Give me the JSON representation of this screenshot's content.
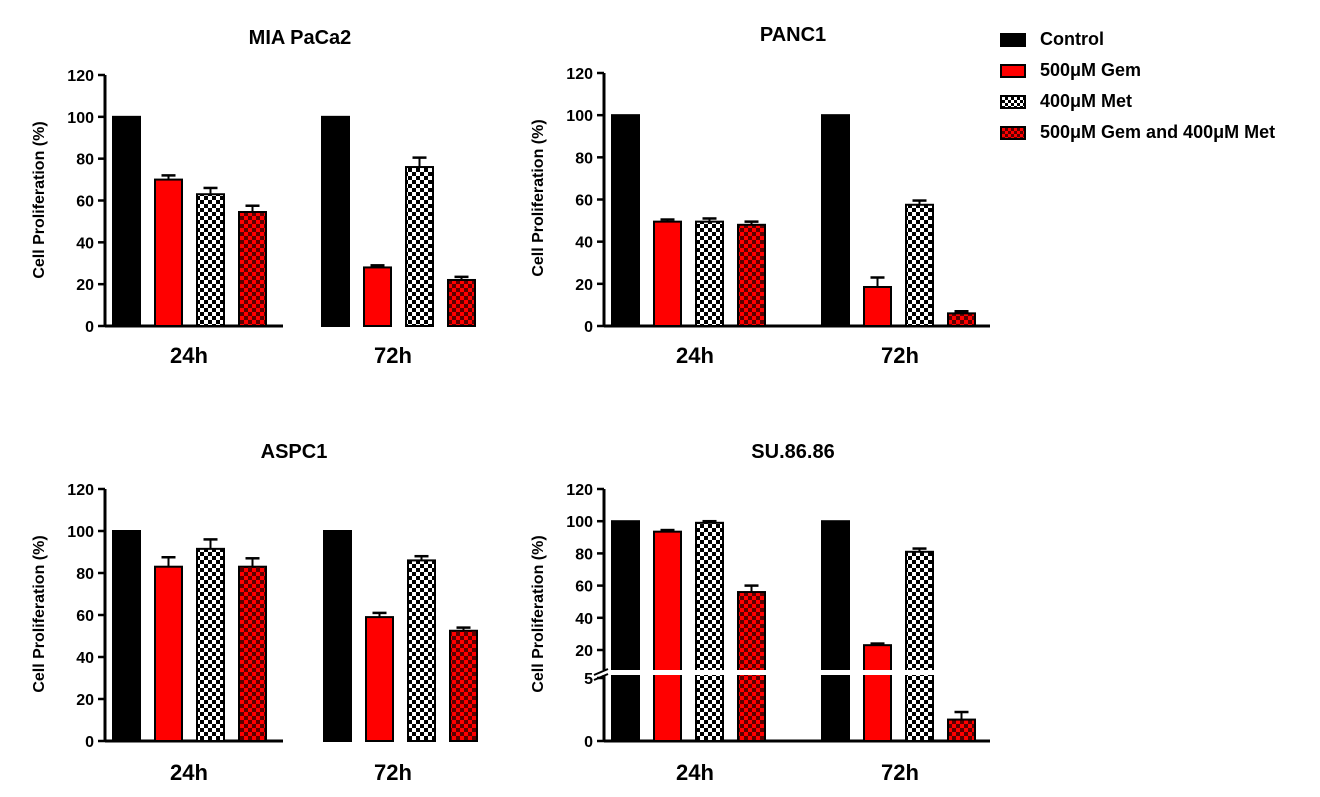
{
  "legend": [
    {
      "label": "Control",
      "fill": "#000000",
      "pattern": "solid"
    },
    {
      "label": "500μM Gem",
      "fill": "#ff0000",
      "pattern": "solid"
    },
    {
      "label": "400μM Met",
      "fill": "#000000",
      "pattern": "checker-white"
    },
    {
      "label": "500μM Gem and 400μM Met",
      "fill": "#ff0000",
      "pattern": "checker-dark"
    }
  ],
  "chart_data": [
    {
      "type": "bar",
      "title": "MIA PaCa2",
      "ylabel": "Cell Proliferation (%)",
      "ylim": [
        0,
        120
      ],
      "yticks": [
        "0",
        "20",
        "40",
        "60",
        "80",
        "100",
        "120"
      ],
      "categories": [
        "24h",
        "72h"
      ],
      "series": [
        {
          "name": "Control",
          "values": [
            100,
            100
          ],
          "errors": [
            0,
            0
          ]
        },
        {
          "name": "500μM Gem",
          "values": [
            70,
            28
          ],
          "errors": [
            2,
            1
          ]
        },
        {
          "name": "400μM Met",
          "values": [
            63,
            76
          ],
          "errors": [
            3,
            4.5
          ]
        },
        {
          "name": "500μM Gem and 400μM Met",
          "values": [
            54.5,
            22
          ],
          "errors": [
            3,
            1.5
          ]
        }
      ]
    },
    {
      "type": "bar",
      "title": "PANC1",
      "ylabel": "Cell Proliferation (%)",
      "ylim": [
        0,
        120
      ],
      "yticks": [
        "0",
        "20",
        "40",
        "60",
        "80",
        "100",
        "120"
      ],
      "categories": [
        "24h",
        "72h"
      ],
      "series": [
        {
          "name": "Control",
          "values": [
            100,
            100
          ],
          "errors": [
            0,
            0
          ]
        },
        {
          "name": "500μM Gem",
          "values": [
            49.5,
            18.5
          ],
          "errors": [
            1,
            4.5
          ]
        },
        {
          "name": "400μM Met",
          "values": [
            49.5,
            57.5
          ],
          "errors": [
            1.5,
            2
          ]
        },
        {
          "name": "500μM Gem and 400μM Met",
          "values": [
            48,
            6
          ],
          "errors": [
            1.5,
            1
          ]
        }
      ]
    },
    {
      "type": "bar",
      "title": "ASPC1",
      "ylabel": "Cell Proliferation (%)",
      "ylim": [
        0,
        120
      ],
      "yticks": [
        "0",
        "20",
        "40",
        "60",
        "80",
        "100",
        "120"
      ],
      "categories": [
        "24h",
        "72h"
      ],
      "series": [
        {
          "name": "Control",
          "values": [
            100,
            100
          ],
          "errors": [
            0,
            0
          ]
        },
        {
          "name": "500μM Gem",
          "values": [
            83,
            59
          ],
          "errors": [
            4.5,
            2
          ]
        },
        {
          "name": "400μM Met",
          "values": [
            91.5,
            86
          ],
          "errors": [
            4.5,
            2
          ]
        },
        {
          "name": "500μM Gem and 400μM Met",
          "values": [
            83,
            52.5
          ],
          "errors": [
            4,
            1.5
          ]
        }
      ]
    },
    {
      "type": "bar",
      "title": "SU.86.86",
      "ylabel": "Cell Proliferation (%)",
      "ylim": [
        0,
        120
      ],
      "axis_break": [
        5,
        20
      ],
      "yticks": [
        "0",
        "5",
        "20",
        "40",
        "60",
        "80",
        "100",
        "120"
      ],
      "categories": [
        "24h",
        "72h"
      ],
      "series": [
        {
          "name": "Control",
          "values": [
            100,
            100
          ],
          "errors": [
            0,
            0
          ]
        },
        {
          "name": "500μM Gem",
          "values": [
            93.5,
            23
          ],
          "errors": [
            1,
            1
          ]
        },
        {
          "name": "400μM Met",
          "values": [
            99,
            81
          ],
          "errors": [
            1,
            2
          ]
        },
        {
          "name": "500μM Gem and 400μM Met",
          "values": [
            56,
            1.7
          ],
          "errors": [
            4,
            0.6
          ]
        }
      ]
    }
  ]
}
